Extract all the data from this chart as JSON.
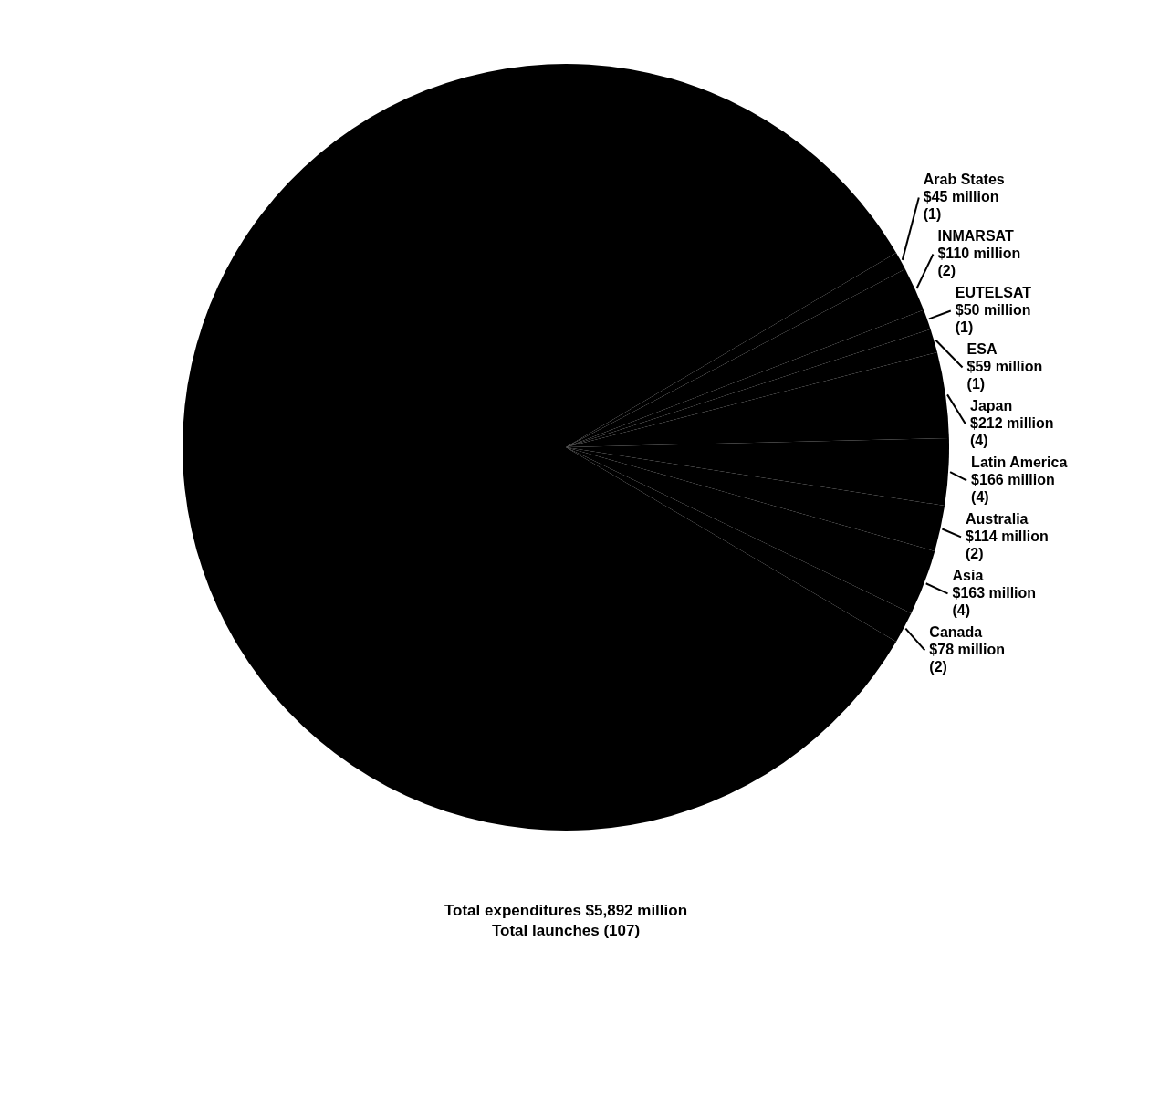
{
  "chart_data": {
    "type": "pie",
    "categories": [
      "Arab States",
      "INMARSAT",
      "EUTELSAT",
      "ESA",
      "Japan",
      "Latin America",
      "Australia",
      "Asia",
      "Canada",
      null
    ],
    "values": [
      45,
      110,
      50,
      59,
      212,
      166,
      114,
      163,
      78,
      4895
    ],
    "colors": [
      "#000000",
      "#000000",
      "#000000",
      "#000000",
      "#000000",
      "#000000",
      "#000000",
      "#000000",
      "#000000",
      "#000000"
    ],
    "value_labels": [
      "$45 million",
      "$110 million",
      "$50 million",
      "$59 million",
      "$212 million",
      "$166 million",
      "$114 million",
      "$163 million",
      "$78 million",
      null
    ],
    "annotations": [
      "Total expenditures $5,892 million",
      "Total launches (107)",
      {
        "text": "(1)",
        "x": "Arab States"
      },
      {
        "text": "(2)",
        "x": "INMARSAT"
      },
      {
        "text": "(1)",
        "x": "EUTELSAT"
      },
      {
        "text": "(1)",
        "x": "ESA"
      },
      {
        "text": "(4)",
        "x": "Japan"
      },
      {
        "text": "(4)",
        "x": "Latin America"
      },
      {
        "text": "(2)",
        "x": "Australia"
      },
      {
        "text": "(4)",
        "x": "Asia"
      },
      {
        "text": "(2)",
        "x": "Canada"
      }
    ]
  }
}
